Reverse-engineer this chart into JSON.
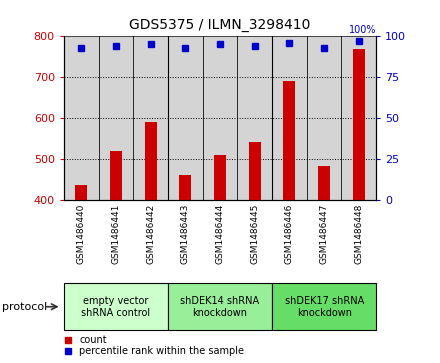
{
  "title": "GDS5375 / ILMN_3298410",
  "samples": [
    "GSM1486440",
    "GSM1486441",
    "GSM1486442",
    "GSM1486443",
    "GSM1486444",
    "GSM1486445",
    "GSM1486446",
    "GSM1486447",
    "GSM1486448"
  ],
  "counts": [
    435,
    518,
    590,
    460,
    510,
    540,
    690,
    482,
    770
  ],
  "percentile_ranks": [
    93,
    94,
    95,
    93,
    95,
    94,
    96,
    93,
    97
  ],
  "ylim_left": [
    400,
    800
  ],
  "ylim_right": [
    0,
    100
  ],
  "yticks_left": [
    400,
    500,
    600,
    700,
    800
  ],
  "yticks_right": [
    0,
    25,
    50,
    75,
    100
  ],
  "bar_color": "#cc0000",
  "dot_color": "#0000cc",
  "protocol_groups": [
    {
      "label": "empty vector\nshRNA control",
      "indices": [
        0,
        1,
        2
      ],
      "color": "#ccffcc"
    },
    {
      "label": "shDEK14 shRNA\nknockdown",
      "indices": [
        3,
        4,
        5
      ],
      "color": "#99ee99"
    },
    {
      "label": "shDEK17 shRNA\nknockdown",
      "indices": [
        6,
        7,
        8
      ],
      "color": "#66dd66"
    }
  ],
  "legend_items": [
    {
      "label": "count",
      "color": "#cc0000"
    },
    {
      "label": "percentile rank within the sample",
      "color": "#0000cc"
    }
  ],
  "protocol_label": "protocol",
  "background_color": "#ffffff",
  "plot_bg_color": "#f5f5f5",
  "col_bg_color": "#d4d4d4",
  "separator_indices": [
    3,
    6
  ]
}
